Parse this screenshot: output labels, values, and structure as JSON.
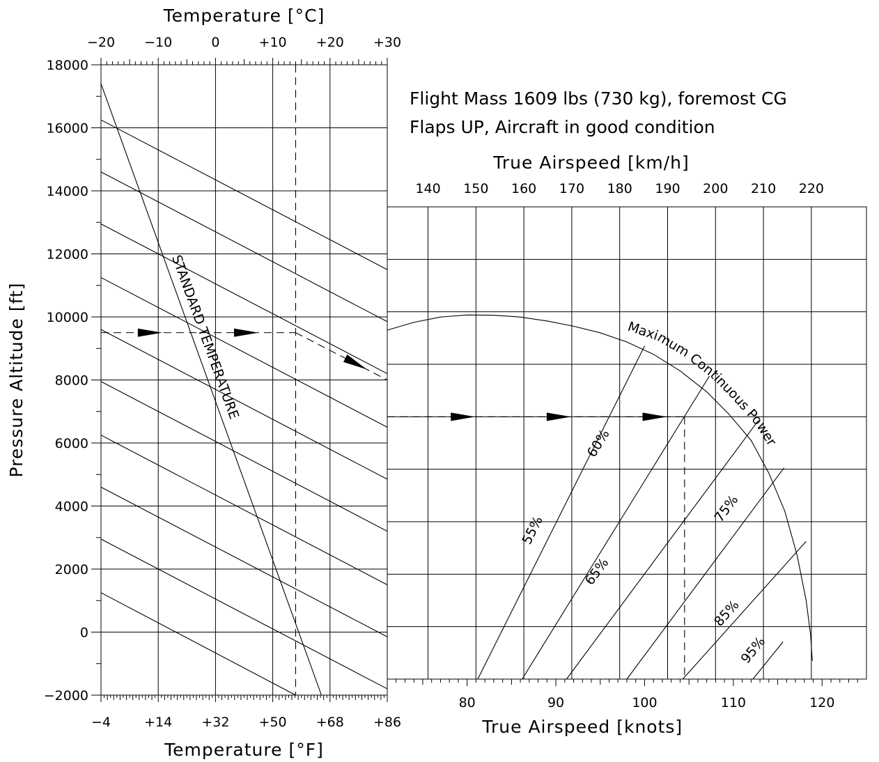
{
  "chart_data": [
    {
      "type": "line",
      "panel": "left",
      "x_top_label": "Temperature [°C]",
      "x_bottom_label": "Temperature [°F]",
      "ylabel": "Pressure Altitude [ft]",
      "x_top_ticks": [
        "−20",
        "−10",
        "0",
        "+10",
        "+20",
        "+30"
      ],
      "x_bottom_ticks": [
        "−4",
        "+14",
        "+32",
        "+50",
        "+68",
        "+86"
      ],
      "y_ticks": [
        "18000",
        "16000",
        "14000",
        "12000",
        "10000",
        "8000",
        "6000",
        "4000",
        "2000",
        "0",
        "−2000"
      ],
      "xlim_celsius": [
        -20,
        30
      ],
      "ylim": [
        -2000,
        18000
      ],
      "grid": true,
      "standard_temperature_label": "STANDARD TEMPERATURE",
      "standard_temperature_line": [
        [
          -20,
          17400
        ],
        [
          18.5,
          -2000
        ]
      ],
      "density_lines": [
        [
          [
            -20,
            16250
          ],
          [
            30,
            11500
          ]
        ],
        [
          [
            -20,
            14600
          ],
          [
            30,
            9850
          ]
        ],
        [
          [
            -20,
            12950
          ],
          [
            30,
            8200
          ]
        ],
        [
          [
            -20,
            11250
          ],
          [
            30,
            6500
          ]
        ],
        [
          [
            -20,
            9600
          ],
          [
            30,
            4850
          ]
        ],
        [
          [
            -20,
            7950
          ],
          [
            30,
            3200
          ]
        ],
        [
          [
            -20,
            6250
          ],
          [
            30,
            1500
          ]
        ],
        [
          [
            -20,
            4600
          ],
          [
            30,
            -150
          ]
        ],
        [
          [
            -20,
            2950
          ],
          [
            30,
            -1800
          ]
        ],
        [
          [
            -20,
            1250
          ],
          [
            14,
            -2000
          ]
        ]
      ],
      "example_path": {
        "entry_altitude": 9500,
        "oat_celsius": 14,
        "exit_altitude": 8000
      }
    },
    {
      "type": "line",
      "panel": "right",
      "title_lines": [
        "Flight Mass 1609 lbs (730 kg), foremost CG",
        "Flaps UP, Aircraft in good condition"
      ],
      "x_top_label": "True Airspeed [km/h]",
      "x_bottom_label": "True Airspeed [knots]",
      "x_top_ticks": [
        "140",
        "150",
        "160",
        "170",
        "180",
        "190",
        "200",
        "210",
        "220"
      ],
      "x_top_values": [
        140,
        150,
        160,
        170,
        180,
        190,
        200,
        210,
        220
      ],
      "x_bottom_ticks": [
        "80",
        "90",
        "100",
        "110",
        "120"
      ],
      "x_bottom_values": [
        80,
        90,
        100,
        110,
        120
      ],
      "xlim_knots": [
        71,
        125
      ],
      "ylim": [
        -2000,
        16000
      ],
      "grid": true,
      "max_power_label": "Maximum Continuous Power",
      "max_power_curve": [
        [
          71,
          11300
        ],
        [
          74,
          11600
        ],
        [
          77,
          11800
        ],
        [
          80,
          11880
        ],
        [
          83,
          11870
        ],
        [
          86,
          11800
        ],
        [
          89,
          11650
        ],
        [
          92,
          11450
        ],
        [
          95,
          11200
        ],
        [
          98,
          10850
        ],
        [
          101,
          10380
        ],
        [
          104,
          9750
        ],
        [
          107,
          8950
        ],
        [
          109.5,
          8100
        ],
        [
          112,
          7100
        ],
        [
          114,
          5850
        ],
        [
          115.8,
          4400
        ],
        [
          117.2,
          2700
        ],
        [
          118.2,
          1000
        ],
        [
          118.7,
          -300
        ],
        [
          118.9,
          -1300
        ]
      ],
      "power_lines": [
        {
          "label": "55%",
          "points": [
            [
              81.2,
              -2000
            ],
            [
              100,
              10700
            ]
          ]
        },
        {
          "label": "60%",
          "points": [
            [
              86.2,
              -2000
            ],
            [
              107.3,
              9550
            ]
          ]
        },
        {
          "label": "65%",
          "points": [
            [
              91.2,
              -2000
            ],
            [
              112.8,
              7850
            ]
          ]
        },
        {
          "label": "75%",
          "points": [
            [
              98,
              -2000
            ],
            [
              115.7,
              6050
            ]
          ]
        },
        {
          "label": "85%",
          "points": [
            [
              104.3,
              -2000
            ],
            [
              118.2,
              3250
            ]
          ]
        },
        {
          "label": "95%",
          "points": [
            [
              112.2,
              -2000
            ],
            [
              115.6,
              -580
            ]
          ]
        }
      ],
      "example_path": {
        "altitude": 8000,
        "result_knots": 104.5
      }
    }
  ]
}
